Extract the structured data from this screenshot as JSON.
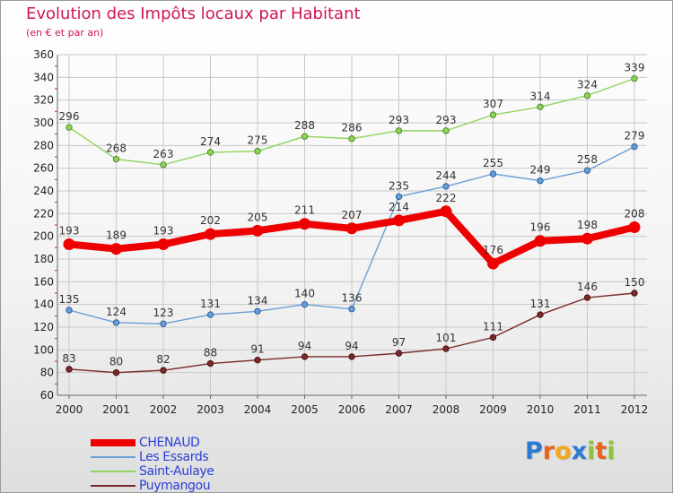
{
  "header": {
    "title": "Evolution des Impôts locaux par Habitant",
    "subtitle": "(en € et par an)"
  },
  "logo": {
    "text": "Proxiti",
    "letters": [
      {
        "ch": "P",
        "color": "#2b7bd4"
      },
      {
        "ch": "r",
        "color": "#e8641b"
      },
      {
        "ch": "o",
        "color": "#f2a81d"
      },
      {
        "ch": "x",
        "color": "#2b7bd4"
      },
      {
        "ch": "i",
        "color": "#8cc63f"
      },
      {
        "ch": "t",
        "color": "#e8641b"
      },
      {
        "ch": "i",
        "color": "#8cc63f"
      }
    ]
  },
  "chart_data": {
    "type": "line",
    "title": "Evolution des Impôts locaux par Habitant",
    "subtitle": "(en € et par an)",
    "xlabel": "",
    "ylabel": "",
    "ylim": [
      60,
      360
    ],
    "yticks": [
      60,
      80,
      100,
      120,
      140,
      160,
      180,
      200,
      220,
      240,
      260,
      280,
      300,
      320,
      340,
      360
    ],
    "grid": true,
    "legend_position": "bottom-left",
    "x": [
      "2000",
      "2001",
      "2002",
      "2003",
      "2004",
      "2005",
      "2006",
      "2007",
      "2008",
      "2009",
      "2010",
      "2011",
      "2012"
    ],
    "series": [
      {
        "name": "CHENAUD",
        "color": "#ee0000",
        "marker_edge": "#ee0000",
        "values": [
          193,
          189,
          193,
          202,
          205,
          211,
          207,
          214,
          222,
          176,
          196,
          198,
          208
        ],
        "label_color": "#333333",
        "label_side": "above"
      },
      {
        "name": "Les Essards",
        "color": "#6a9ed6",
        "marker_edge": "#2a5f9e",
        "values": [
          135,
          124,
          123,
          131,
          134,
          140,
          136,
          235,
          244,
          255,
          249,
          258,
          279
        ],
        "label_color": "#333333",
        "label_side": "above"
      },
      {
        "name": "Saint-Aulaye",
        "color": "#8fd45a",
        "marker_edge": "#4f8a2a",
        "values": [
          296,
          268,
          263,
          274,
          275,
          288,
          286,
          293,
          293,
          307,
          314,
          324,
          339
        ],
        "label_color": "#333333",
        "label_side": "above"
      },
      {
        "name": "Puymangou",
        "color": "#7a2a2a",
        "marker_edge": "#4a1010",
        "values": [
          83,
          80,
          82,
          88,
          91,
          94,
          94,
          97,
          101,
          111,
          131,
          146,
          150
        ],
        "label_color": "#333333",
        "label_side": "above"
      }
    ]
  }
}
